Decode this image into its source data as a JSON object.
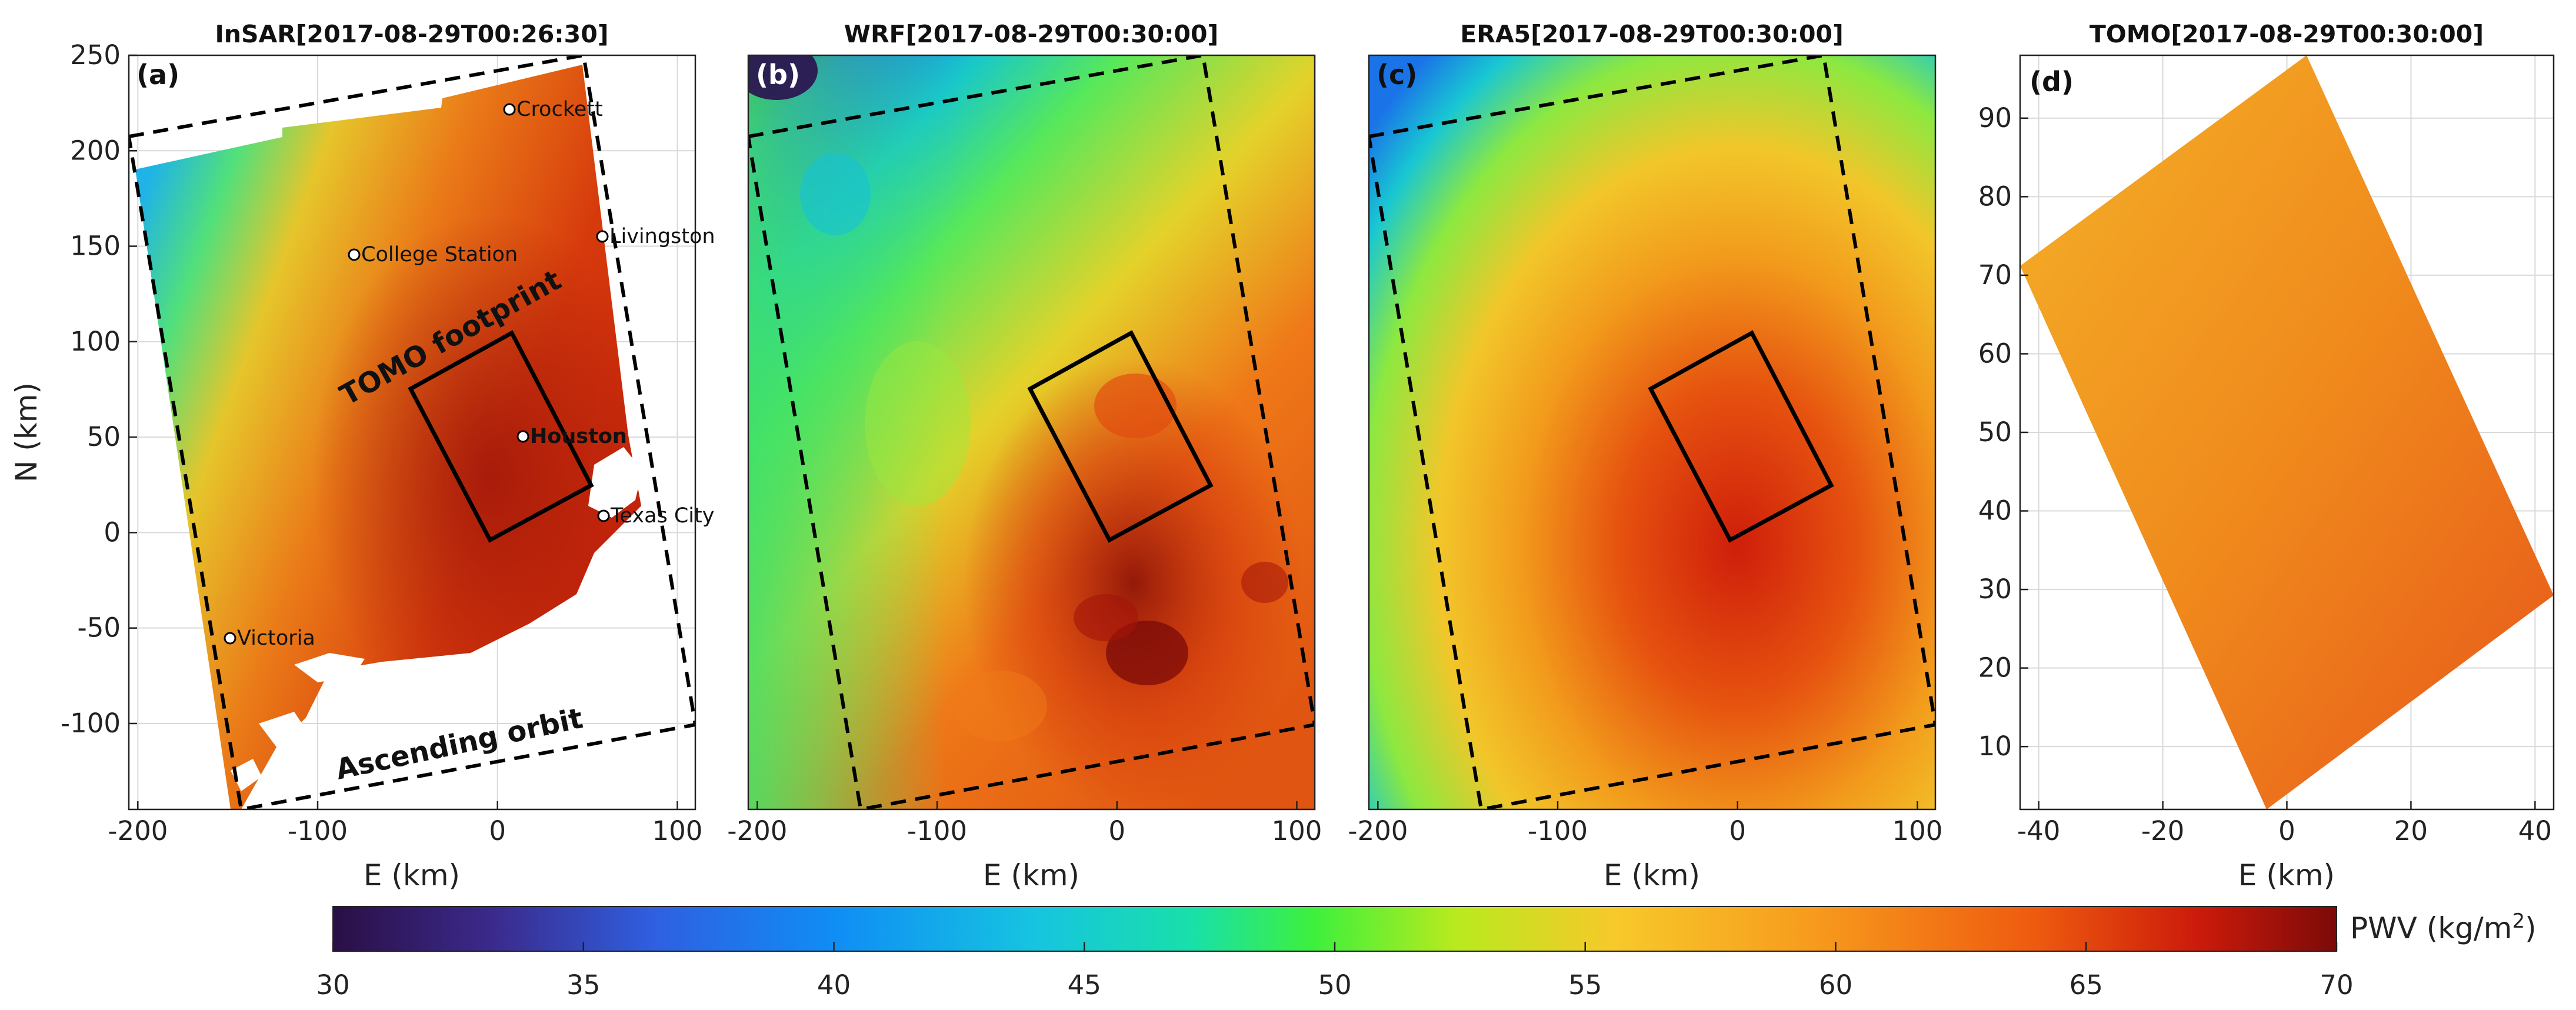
{
  "figure": {
    "colorbar": {
      "label": "PWV (kg/m",
      "label_sup": "2",
      "label_close": ")",
      "min": 30,
      "max": 70,
      "ticks": [
        30,
        35,
        40,
        45,
        50,
        55,
        60,
        65,
        70
      ],
      "colormap": [
        "#2a0f45",
        "#3b2a8c",
        "#2f5fe0",
        "#0f8df5",
        "#16c4e0",
        "#19e0a8",
        "#3ef03c",
        "#b8ea1e",
        "#f7c92a",
        "#f79a1d",
        "#ee5a0f",
        "#cc1b0b",
        "#7c0a08"
      ]
    },
    "cities": {
      "crockett": "Crockett",
      "livingston": "Livingston",
      "college_station": "College Station",
      "houston": "Houston",
      "texas_city": "Texas City",
      "victoria": "Victoria"
    },
    "annotations": {
      "tomo_footprint": "TOMO footprint",
      "ascending_orbit": "Ascending orbit"
    }
  },
  "chart_data": [
    {
      "type": "heatmap",
      "panel": "(a)",
      "title": "InSAR[2017-08-29T00:26:30]",
      "xlabel": "E (km)",
      "ylabel": "N (km)",
      "xlim": [
        -205,
        110
      ],
      "ylim": [
        -145,
        250
      ],
      "xticks": [
        -200,
        -100,
        0,
        100
      ],
      "yticks": [
        250,
        200,
        150,
        100,
        50,
        0,
        -50,
        -100
      ],
      "typical_pwv": [
        50,
        66
      ],
      "markers": [
        {
          "name": "Crockett",
          "x": 5,
          "y": 222
        },
        {
          "name": "Livingston",
          "x": 55,
          "y": 155
        },
        {
          "name": "College Station",
          "x": -80,
          "y": 146
        },
        {
          "name": "Houston",
          "x": 12,
          "y": 50
        },
        {
          "name": "Texas City",
          "x": 55,
          "y": 8
        },
        {
          "name": "Victoria",
          "x": -148,
          "y": -56
        }
      ]
    },
    {
      "type": "heatmap",
      "panel": "(b)",
      "title": "WRF[2017-08-29T00:30:00]",
      "xlabel": "E (km)",
      "xlim": [
        -205,
        110
      ],
      "ylim": [
        -145,
        250
      ],
      "xticks": [
        -200,
        -100,
        0,
        100
      ],
      "typical_pwv": [
        32,
        68
      ]
    },
    {
      "type": "heatmap",
      "panel": "(c)",
      "title": "ERA5[2017-08-29T00:30:00]",
      "xlabel": "E (km)",
      "xlim": [
        -205,
        110
      ],
      "ylim": [
        -145,
        250
      ],
      "xticks": [
        -200,
        -100,
        0,
        100
      ],
      "typical_pwv": [
        40,
        66
      ]
    },
    {
      "type": "heatmap",
      "panel": "(d)",
      "title": "TOMO[2017-08-29T00:30:00]",
      "xlabel": "E (km)",
      "xlim": [
        -43,
        43
      ],
      "ylim": [
        2,
        98
      ],
      "xticks": [
        -40,
        -20,
        0,
        20,
        40
      ],
      "yticks": [
        90,
        80,
        70,
        60,
        50,
        40,
        30,
        20,
        10
      ],
      "typical_pwv": [
        58,
        62
      ]
    }
  ]
}
